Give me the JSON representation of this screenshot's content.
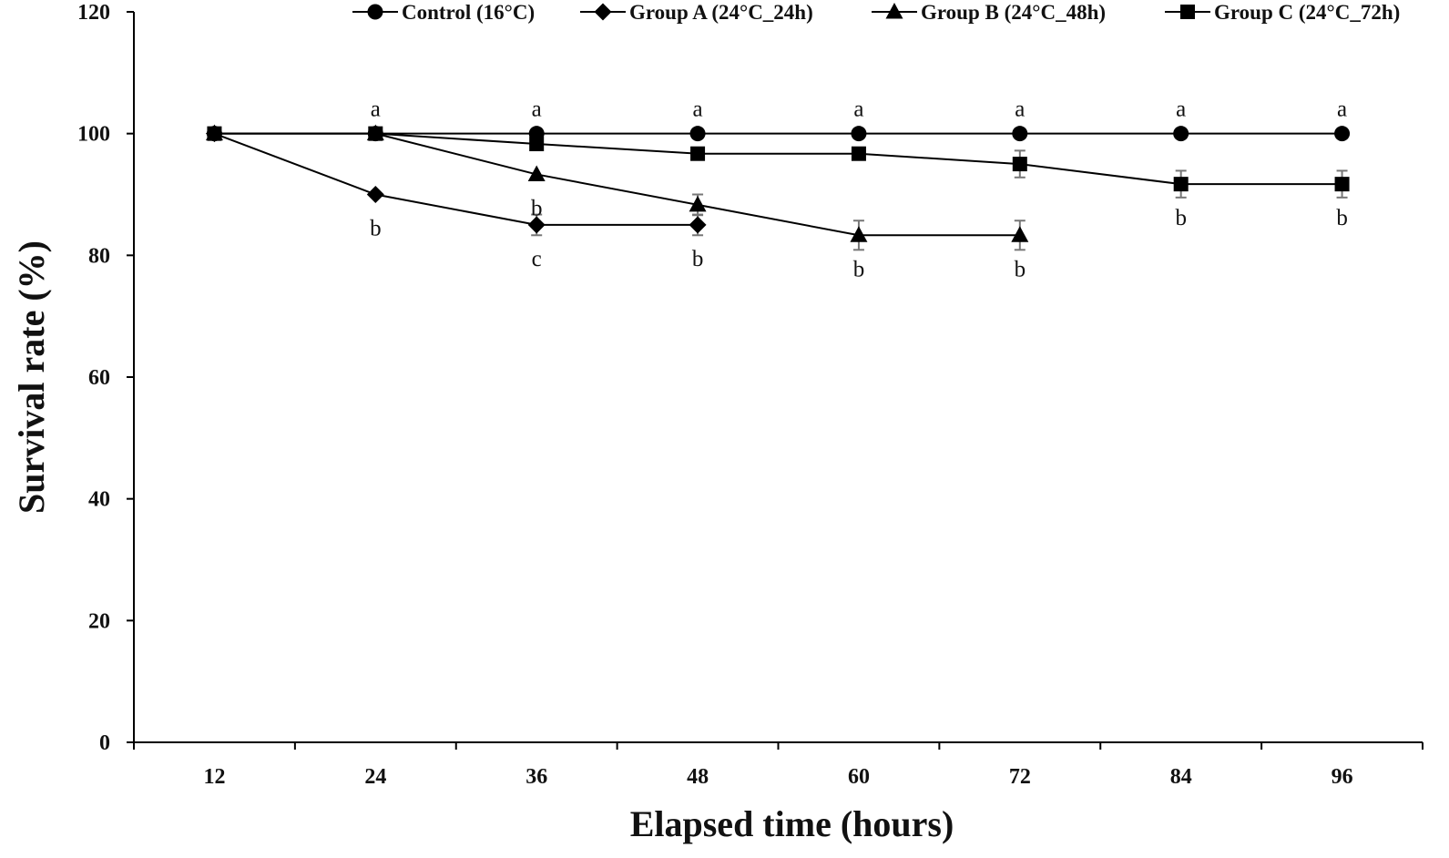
{
  "chart_data": {
    "type": "line",
    "title": "",
    "xlabel": "Elapsed time (hours)",
    "ylabel": "Survival rate (%)",
    "x": [
      12,
      24,
      36,
      48,
      60,
      72,
      84,
      96
    ],
    "x_tick_labels": [
      "12",
      "24",
      "36",
      "48",
      "60",
      "72",
      "84",
      "96"
    ],
    "ylim": [
      0,
      120
    ],
    "y_ticks": [
      0,
      20,
      40,
      60,
      80,
      100,
      120
    ],
    "y_tick_labels": [
      "0",
      "20",
      "40",
      "60",
      "80",
      "100",
      "120"
    ],
    "grid": false,
    "legend_position": "top",
    "series": [
      {
        "name": "Control (16°C)",
        "marker": "circle",
        "values": [
          100,
          100,
          100,
          100,
          100,
          100,
          100,
          100
        ],
        "errors": [
          0,
          0,
          0,
          0,
          0,
          0,
          0,
          0
        ]
      },
      {
        "name": "Group A (24°C_24h)",
        "marker": "diamond",
        "values": [
          100,
          90,
          85,
          85,
          null,
          null,
          null,
          null
        ],
        "errors": [
          0,
          0,
          1.7,
          1.7,
          0,
          0,
          0,
          0
        ]
      },
      {
        "name": "Group B (24°C_48h)",
        "marker": "triangle",
        "values": [
          100,
          100,
          93.3,
          88.3,
          83.3,
          83.3,
          null,
          null
        ],
        "errors": [
          0,
          0,
          0,
          1.7,
          2.4,
          2.4,
          0,
          0
        ]
      },
      {
        "name": "Group C (24°C_72h)",
        "marker": "square",
        "values": [
          100,
          100,
          98.3,
          96.7,
          96.7,
          95,
          91.7,
          91.7
        ],
        "errors": [
          0,
          0,
          0,
          0,
          0,
          2.2,
          2.2,
          2.2
        ]
      }
    ],
    "annotations": [
      {
        "x": 24,
        "y": 100,
        "text": "a",
        "pos": "above"
      },
      {
        "x": 36,
        "y": 100,
        "text": "a",
        "pos": "above"
      },
      {
        "x": 48,
        "y": 100,
        "text": "a",
        "pos": "above"
      },
      {
        "x": 60,
        "y": 100,
        "text": "a",
        "pos": "above"
      },
      {
        "x": 72,
        "y": 100,
        "text": "a",
        "pos": "above"
      },
      {
        "x": 84,
        "y": 100,
        "text": "a",
        "pos": "above"
      },
      {
        "x": 96,
        "y": 100,
        "text": "a",
        "pos": "above"
      },
      {
        "x": 24,
        "y": 90,
        "text": "b",
        "pos": "below"
      },
      {
        "x": 36,
        "y": 93.3,
        "text": "b",
        "pos": "below"
      },
      {
        "x": 36,
        "y": 85,
        "text": "c",
        "pos": "below"
      },
      {
        "x": 48,
        "y": 85,
        "text": "b",
        "pos": "below"
      },
      {
        "x": 60,
        "y": 83.3,
        "text": "b",
        "pos": "below"
      },
      {
        "x": 72,
        "y": 83.3,
        "text": "b",
        "pos": "below"
      },
      {
        "x": 84,
        "y": 91.7,
        "text": "b",
        "pos": "below"
      },
      {
        "x": 96,
        "y": 91.7,
        "text": "b",
        "pos": "below"
      }
    ]
  }
}
